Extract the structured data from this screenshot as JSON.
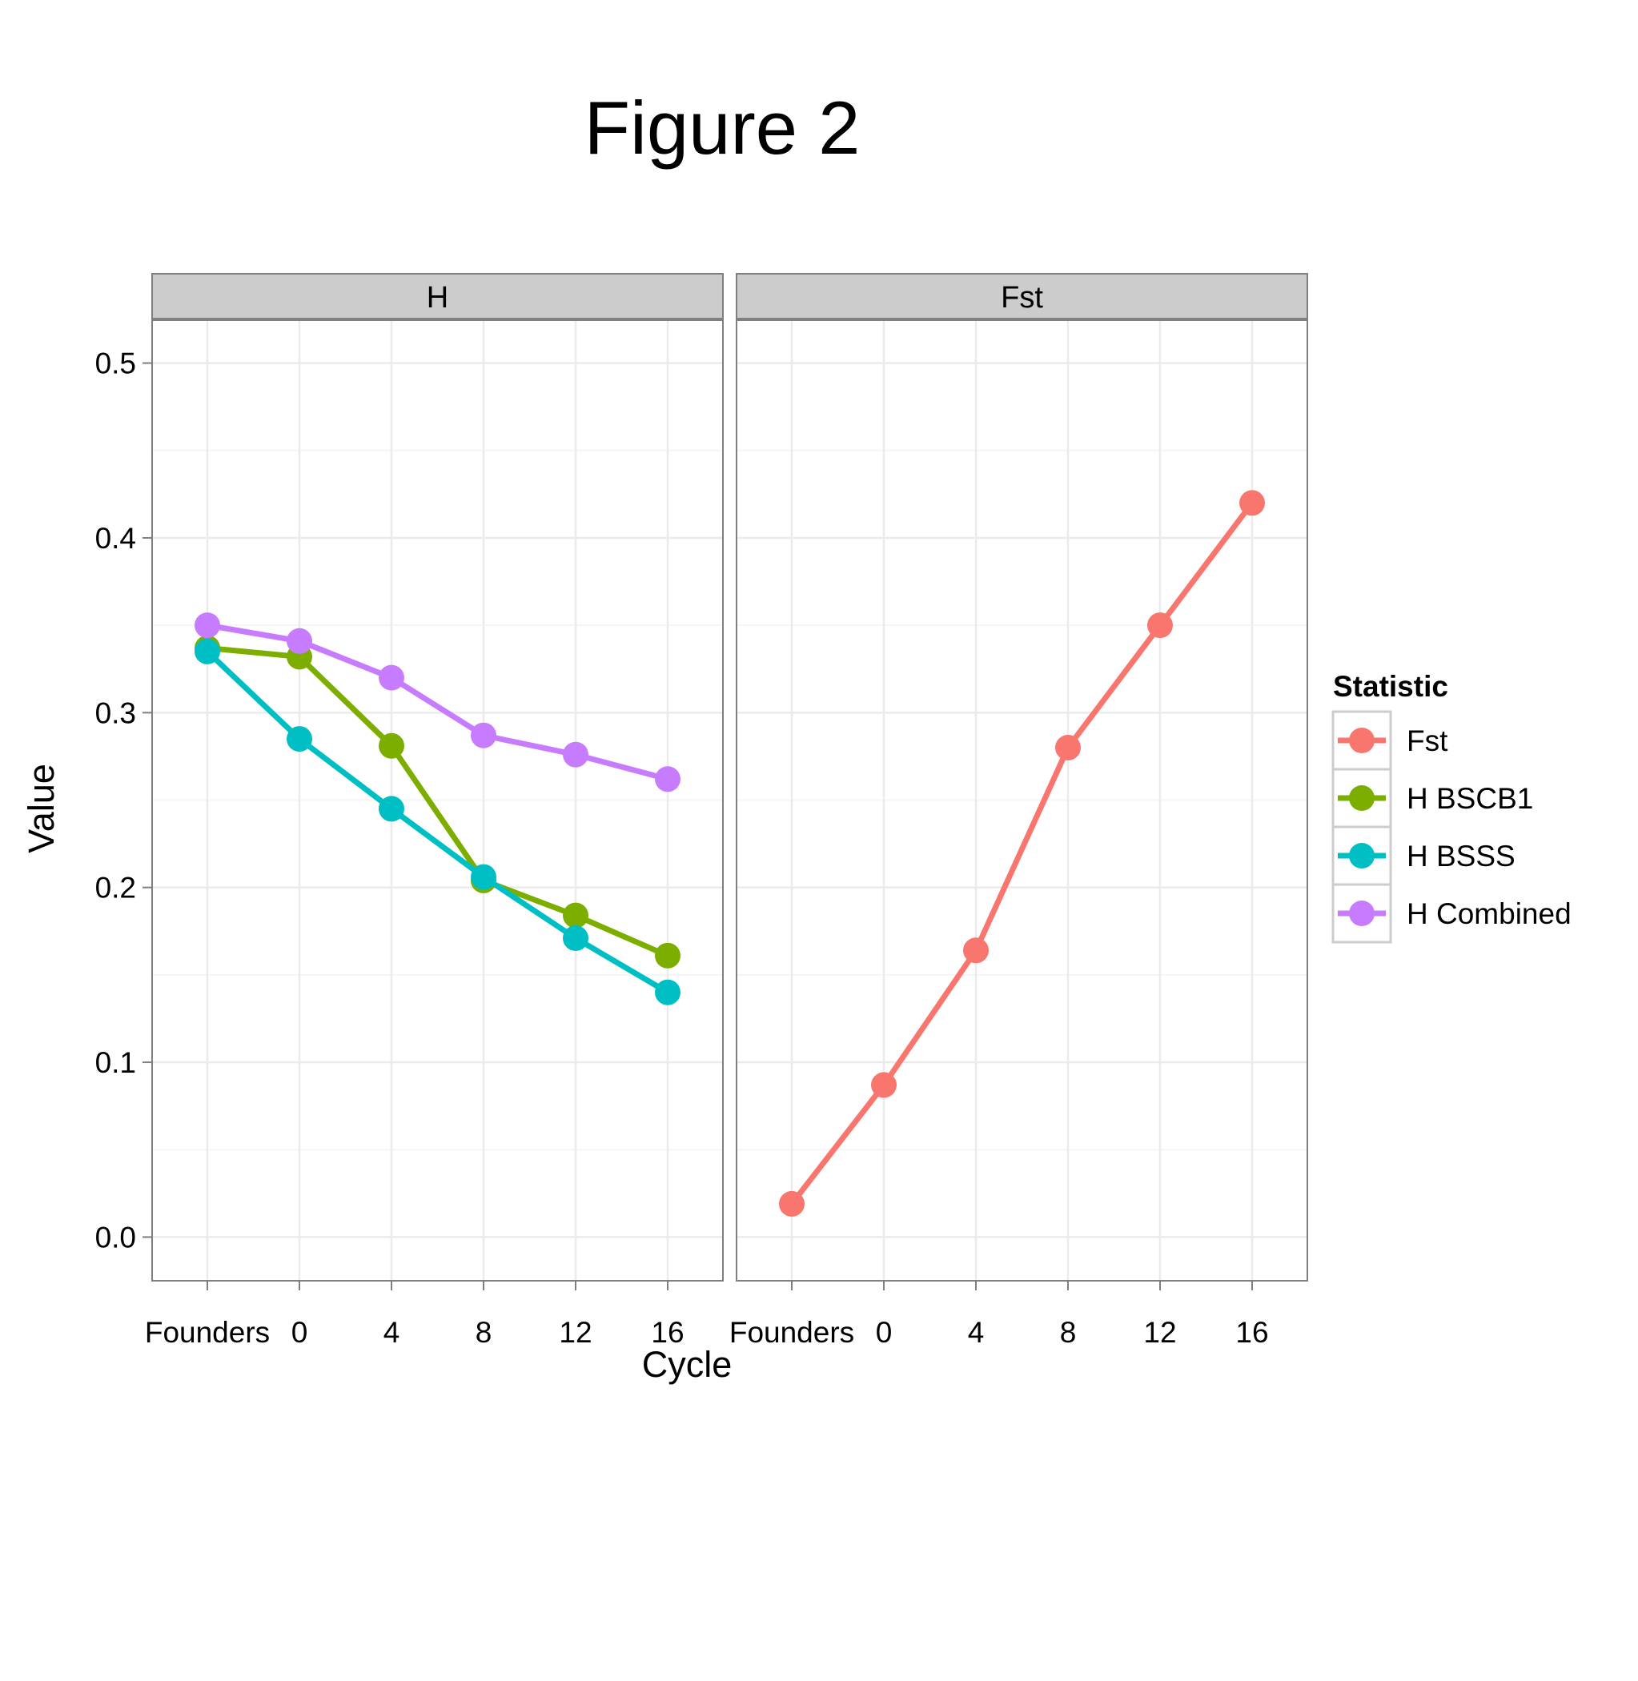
{
  "chart_data": {
    "type": "line",
    "title": "Figure 2",
    "xlabel": "Cycle",
    "ylabel": "Value",
    "ylim": [
      -0.025,
      0.525
    ],
    "y_ticks": [
      0.0,
      0.1,
      0.2,
      0.3,
      0.4,
      0.5
    ],
    "y_tick_labels": [
      "0.0",
      "0.1",
      "0.2",
      "0.3",
      "0.4",
      "0.5"
    ],
    "categories": [
      "Founders",
      "0",
      "4",
      "8",
      "12",
      "16"
    ],
    "grid": true,
    "legend": {
      "title": "Statistic",
      "position": "right",
      "entries": [
        "Fst",
        "H BSCB1",
        "H BSSS",
        "H Combined"
      ]
    },
    "panels": [
      {
        "strip": "H",
        "series": [
          {
            "name": "H BSCB1",
            "color": "#7CAE00",
            "values": [
              0.337,
              0.332,
              0.281,
              0.204,
              0.184,
              0.161
            ]
          },
          {
            "name": "H BSSS",
            "color": "#00BFC4",
            "values": [
              0.335,
              0.285,
              0.245,
              0.206,
              0.171,
              0.14
            ]
          },
          {
            "name": "H Combined",
            "color": "#C77CFF",
            "values": [
              0.35,
              0.341,
              0.32,
              0.287,
              0.276,
              0.262
            ]
          }
        ]
      },
      {
        "strip": "Fst",
        "series": [
          {
            "name": "Fst",
            "color": "#F8766D",
            "values": [
              0.019,
              0.087,
              0.164,
              0.28,
              0.35,
              0.42
            ]
          }
        ]
      }
    ]
  },
  "colors": {
    "Fst": "#F8766D",
    "H BSCB1": "#7CAE00",
    "H BSSS": "#00BFC4",
    "H Combined": "#C77CFF",
    "panel_border": "#7f7f7f",
    "strip_fill": "#cccccc",
    "grid": "#ebebeb"
  }
}
